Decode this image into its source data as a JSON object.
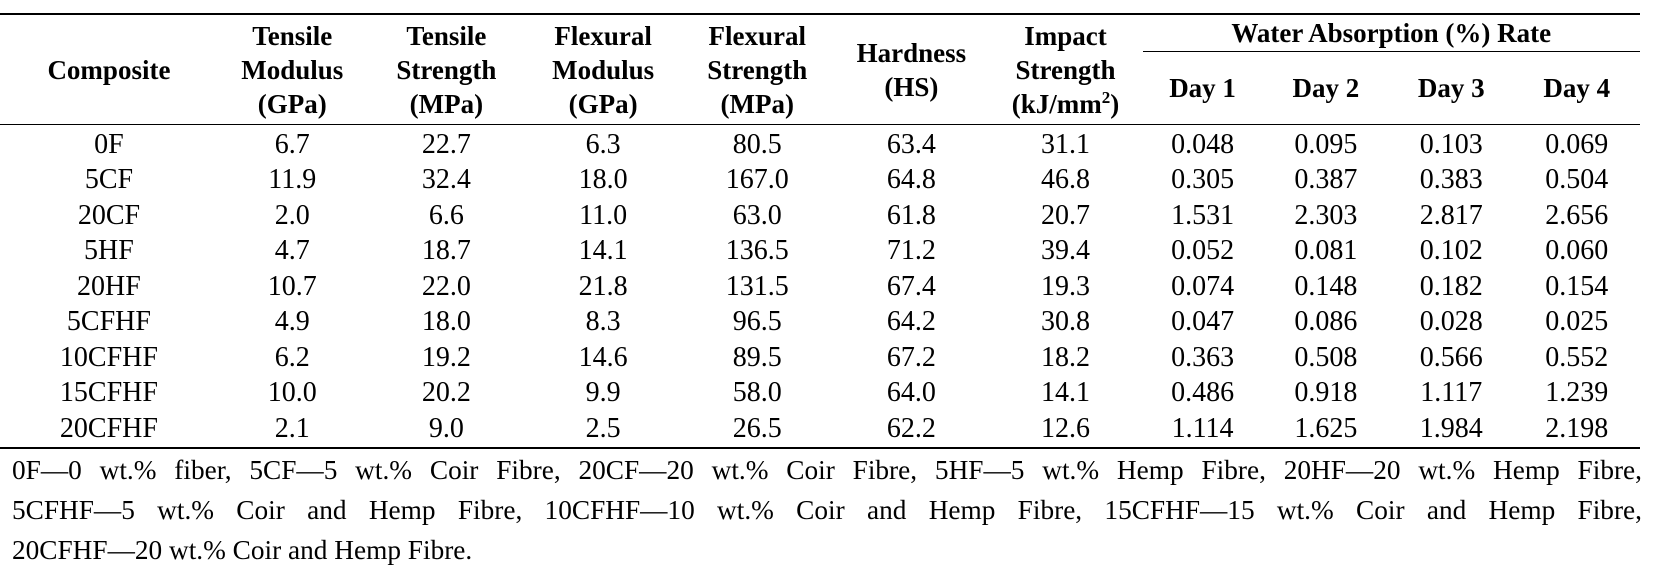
{
  "table": {
    "headers": {
      "composite": "Composite",
      "tensile_modulus": [
        "Tensile",
        "Modulus",
        "(GPa)"
      ],
      "tensile_strength": [
        "Tensile",
        "Strength",
        "(MPa)"
      ],
      "flexural_modulus": [
        "Flexural",
        "Modulus",
        "(GPa)"
      ],
      "flexural_strength": [
        "Flexural",
        "Strength",
        "(MPa)"
      ],
      "hardness": [
        "Hardness",
        "(HS)"
      ],
      "impact_strength": [
        "Impact",
        "Strength",
        "(kJ/mm",
        "2",
        ")"
      ],
      "water_group": "Water Absorption (%) Rate",
      "days": [
        "Day 1",
        "Day 2",
        "Day 3",
        "Day 4"
      ]
    },
    "rows": [
      {
        "composite": "0F",
        "tm": "6.7",
        "ts": "22.7",
        "fm": "6.3",
        "fs": "80.5",
        "hs": "63.4",
        "is": "31.1",
        "d1": "0.048",
        "d2": "0.095",
        "d3": "0.103",
        "d4": "0.069"
      },
      {
        "composite": "5CF",
        "tm": "11.9",
        "ts": "32.4",
        "fm": "18.0",
        "fs": "167.0",
        "hs": "64.8",
        "is": "46.8",
        "d1": "0.305",
        "d2": "0.387",
        "d3": "0.383",
        "d4": "0.504"
      },
      {
        "composite": "20CF",
        "tm": "2.0",
        "ts": "6.6",
        "fm": "11.0",
        "fs": "63.0",
        "hs": "61.8",
        "is": "20.7",
        "d1": "1.531",
        "d2": "2.303",
        "d3": "2.817",
        "d4": "2.656"
      },
      {
        "composite": "5HF",
        "tm": "4.7",
        "ts": "18.7",
        "fm": "14.1",
        "fs": "136.5",
        "hs": "71.2",
        "is": "39.4",
        "d1": "0.052",
        "d2": "0.081",
        "d3": "0.102",
        "d4": "0.060"
      },
      {
        "composite": "20HF",
        "tm": "10.7",
        "ts": "22.0",
        "fm": "21.8",
        "fs": "131.5",
        "hs": "67.4",
        "is": "19.3",
        "d1": "0.074",
        "d2": "0.148",
        "d3": "0.182",
        "d4": "0.154"
      },
      {
        "composite": "5CFHF",
        "tm": "4.9",
        "ts": "18.0",
        "fm": "8.3",
        "fs": "96.5",
        "hs": "64.2",
        "is": "30.8",
        "d1": "0.047",
        "d2": "0.086",
        "d3": "0.028",
        "d4": "0.025"
      },
      {
        "composite": "10CFHF",
        "tm": "6.2",
        "ts": "19.2",
        "fm": "14.6",
        "fs": "89.5",
        "hs": "67.2",
        "is": "18.2",
        "d1": "0.363",
        "d2": "0.508",
        "d3": "0.566",
        "d4": "0.552"
      },
      {
        "composite": "15CFHF",
        "tm": "10.0",
        "ts": "20.2",
        "fm": "9.9",
        "fs": "58.0",
        "hs": "64.0",
        "is": "14.1",
        "d1": "0.486",
        "d2": "0.918",
        "d3": "1.117",
        "d4": "1.239"
      },
      {
        "composite": "20CFHF",
        "tm": "2.1",
        "ts": "9.0",
        "fm": "2.5",
        "fs": "26.5",
        "hs": "62.2",
        "is": "12.6",
        "d1": "1.114",
        "d2": "1.625",
        "d3": "1.984",
        "d4": "2.198"
      }
    ]
  },
  "footnote": {
    "lines": [
      "0F—0 wt.% fiber, 5CF—5 wt.% Coir Fibre, 20CF—20 wt.% Coir Fibre, 5HF—5 wt.% Hemp Fibre, 20HF—20 wt.% Hemp Fibre,",
      "5CFHF—5 wt.% Coir and Hemp Fibre, 10CFHF—10 wt.% Coir and Hemp Fibre, 15CFHF—15 wt.% Coir and Hemp Fibre,",
      "20CFHF—20 wt.% Coir and Hemp Fibre."
    ]
  }
}
